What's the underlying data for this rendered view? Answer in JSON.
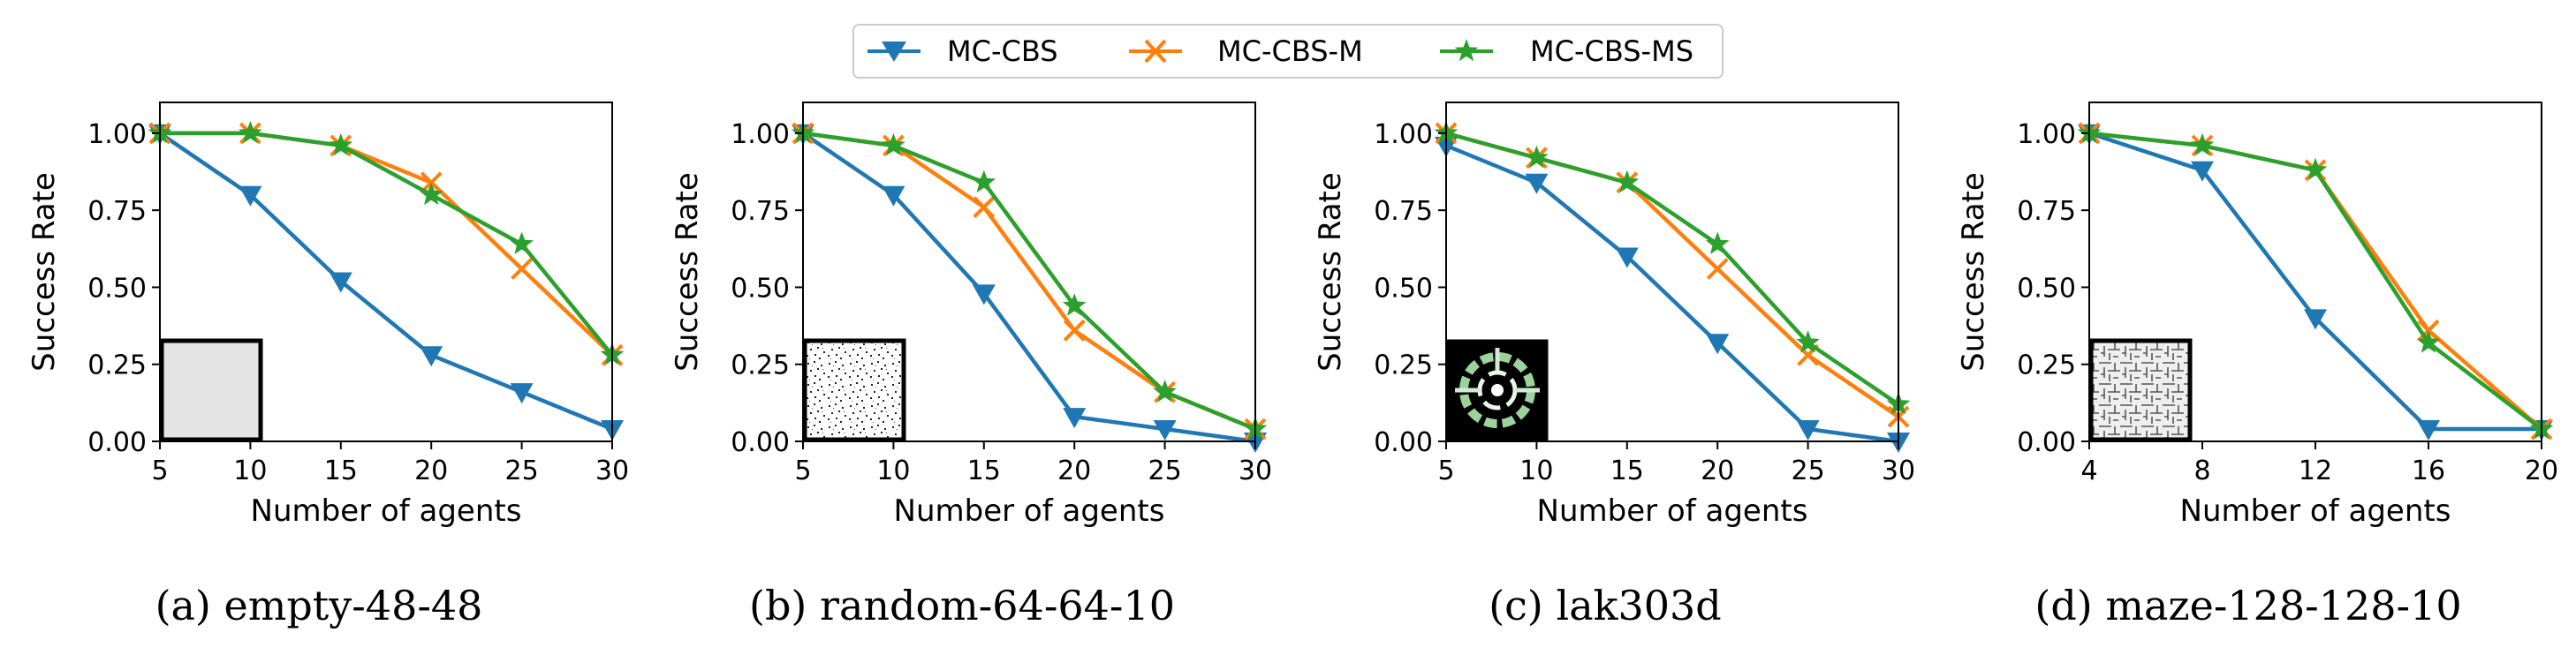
{
  "legend": {
    "items": [
      {
        "label": "MC-CBS",
        "color": "#1f77b4",
        "marker": "triangle-down"
      },
      {
        "label": "MC-CBS-M",
        "color": "#ff7f0e",
        "marker": "x"
      },
      {
        "label": "MC-CBS-MS",
        "color": "#2ca02c",
        "marker": "star"
      }
    ]
  },
  "chart_data": [
    {
      "type": "line",
      "caption": "(a) empty-48-48",
      "xlabel": "Number of agents",
      "ylabel": "Success Rate",
      "xlim": [
        5,
        30
      ],
      "ylim": [
        0,
        1.1
      ],
      "xticks": [
        "5",
        "10",
        "15",
        "20",
        "25",
        "30"
      ],
      "xtick_values": [
        5,
        10,
        15,
        20,
        25,
        30
      ],
      "yticks": [
        "0.00",
        "0.25",
        "0.50",
        "0.75",
        "1.00"
      ],
      "ytick_values": [
        0,
        0.25,
        0.5,
        0.75,
        1.0
      ],
      "inset_map": "empty-map-icon",
      "x": [
        5,
        10,
        15,
        20,
        25,
        30
      ],
      "series": [
        {
          "name": "MC-CBS",
          "values": [
            1.0,
            0.8,
            0.52,
            0.28,
            0.16,
            0.04
          ]
        },
        {
          "name": "MC-CBS-M",
          "values": [
            1.0,
            1.0,
            0.96,
            0.84,
            0.56,
            0.28
          ]
        },
        {
          "name": "MC-CBS-MS",
          "values": [
            1.0,
            1.0,
            0.96,
            0.8,
            0.64,
            0.28
          ]
        }
      ]
    },
    {
      "type": "line",
      "caption": "(b) random-64-64-10",
      "xlabel": "Number of agents",
      "ylabel": "Success Rate",
      "xlim": [
        5,
        30
      ],
      "ylim": [
        0,
        1.1
      ],
      "xticks": [
        "5",
        "10",
        "15",
        "20",
        "25",
        "30"
      ],
      "xtick_values": [
        5,
        10,
        15,
        20,
        25,
        30
      ],
      "yticks": [
        "0.00",
        "0.25",
        "0.50",
        "0.75",
        "1.00"
      ],
      "ytick_values": [
        0,
        0.25,
        0.5,
        0.75,
        1.0
      ],
      "inset_map": "random-map-icon",
      "x": [
        5,
        10,
        15,
        20,
        25,
        30
      ],
      "series": [
        {
          "name": "MC-CBS",
          "values": [
            1.0,
            0.8,
            0.48,
            0.08,
            0.04,
            0.0
          ]
        },
        {
          "name": "MC-CBS-M",
          "values": [
            1.0,
            0.96,
            0.76,
            0.36,
            0.16,
            0.04
          ]
        },
        {
          "name": "MC-CBS-MS",
          "values": [
            1.0,
            0.96,
            0.84,
            0.44,
            0.16,
            0.04
          ]
        }
      ]
    },
    {
      "type": "line",
      "caption": "(c) lak303d",
      "xlabel": "Number of agents",
      "ylabel": "Success Rate",
      "xlim": [
        5,
        30
      ],
      "ylim": [
        0,
        1.1
      ],
      "xticks": [
        "5",
        "10",
        "15",
        "20",
        "25",
        "30"
      ],
      "xtick_values": [
        5,
        10,
        15,
        20,
        25,
        30
      ],
      "yticks": [
        "0.00",
        "0.25",
        "0.50",
        "0.75",
        "1.00"
      ],
      "ytick_values": [
        0,
        0.25,
        0.5,
        0.75,
        1.0
      ],
      "inset_map": "lak303d-map-icon",
      "x": [
        5,
        10,
        15,
        20,
        25,
        30
      ],
      "series": [
        {
          "name": "MC-CBS",
          "values": [
            0.96,
            0.84,
            0.6,
            0.32,
            0.04,
            0.0
          ]
        },
        {
          "name": "MC-CBS-M",
          "values": [
            1.0,
            0.92,
            0.84,
            0.56,
            0.28,
            0.08
          ]
        },
        {
          "name": "MC-CBS-MS",
          "values": [
            1.0,
            0.92,
            0.84,
            0.64,
            0.32,
            0.12
          ]
        }
      ]
    },
    {
      "type": "line",
      "caption": "(d) maze-128-128-10",
      "xlabel": "Number of agents",
      "ylabel": "Success Rate",
      "xlim": [
        4,
        20
      ],
      "ylim": [
        0,
        1.1
      ],
      "xticks": [
        "4",
        "8",
        "12",
        "16",
        "20"
      ],
      "xtick_values": [
        4,
        8,
        12,
        16,
        20
      ],
      "yticks": [
        "0.00",
        "0.25",
        "0.50",
        "0.75",
        "1.00"
      ],
      "ytick_values": [
        0,
        0.25,
        0.5,
        0.75,
        1.0
      ],
      "inset_map": "maze-map-icon",
      "x": [
        4,
        8,
        12,
        16,
        20
      ],
      "series": [
        {
          "name": "MC-CBS",
          "values": [
            1.0,
            0.88,
            0.4,
            0.04,
            0.04
          ]
        },
        {
          "name": "MC-CBS-M",
          "values": [
            1.0,
            0.96,
            0.88,
            0.36,
            0.04
          ]
        },
        {
          "name": "MC-CBS-MS",
          "values": [
            1.0,
            0.96,
            0.88,
            0.32,
            0.04
          ]
        }
      ]
    }
  ]
}
